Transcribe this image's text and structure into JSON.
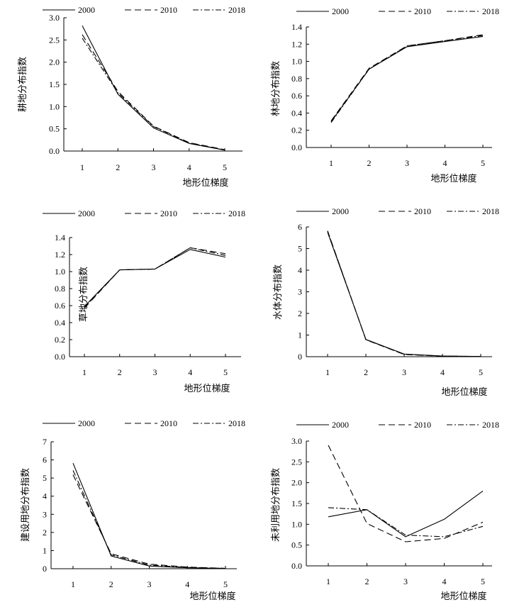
{
  "legend": [
    "2000",
    "2010",
    "2018"
  ],
  "chart_data": [
    {
      "type": "line",
      "categories": [
        "1",
        "2",
        "3",
        "4",
        "5"
      ],
      "ylabel": "耕地分布指数",
      "xlabel": "地形位梯度",
      "ylim": [
        0,
        3.0
      ],
      "yticks": [
        "0.0",
        "0.5",
        "1.0",
        "1.5",
        "2.0",
        "2.5",
        "3.0"
      ],
      "series": [
        {
          "name": "2000",
          "values": [
            2.82,
            1.28,
            0.52,
            0.17,
            0.02
          ]
        },
        {
          "name": "2010",
          "values": [
            2.62,
            1.34,
            0.56,
            0.19,
            0.03
          ]
        },
        {
          "name": "2018",
          "values": [
            2.54,
            1.31,
            0.55,
            0.18,
            0.02
          ]
        }
      ]
    },
    {
      "type": "line",
      "categories": [
        "1",
        "2",
        "3",
        "4",
        "5"
      ],
      "ylabel": "林地分布指数",
      "xlabel": "地形位梯度",
      "ylim": [
        0,
        1.4
      ],
      "yticks": [
        "0.0",
        "0.2",
        "0.4",
        "0.6",
        "0.8",
        "1.0",
        "1.2",
        "1.4"
      ],
      "series": [
        {
          "name": "2000",
          "values": [
            0.3,
            0.91,
            1.17,
            1.23,
            1.29
          ]
        },
        {
          "name": "2010",
          "values": [
            0.31,
            0.92,
            1.18,
            1.24,
            1.31
          ]
        },
        {
          "name": "2018",
          "values": [
            0.29,
            0.91,
            1.18,
            1.24,
            1.3
          ]
        }
      ]
    },
    {
      "type": "line",
      "categories": [
        "1",
        "2",
        "3",
        "4",
        "5"
      ],
      "ylabel": "草地分布指数",
      "xlabel": "地形位梯度",
      "ylim": [
        0,
        1.4
      ],
      "yticks": [
        "0.0",
        "0.2",
        "0.4",
        "0.6",
        "0.8",
        "1.0",
        "1.2",
        "1.4"
      ],
      "series": [
        {
          "name": "2000",
          "values": [
            0.59,
            1.02,
            1.03,
            1.26,
            1.17
          ]
        },
        {
          "name": "2010",
          "values": [
            0.57,
            1.02,
            1.03,
            1.28,
            1.21
          ]
        },
        {
          "name": "2018",
          "values": [
            0.58,
            1.02,
            1.03,
            1.28,
            1.19
          ]
        }
      ]
    },
    {
      "type": "line",
      "categories": [
        "1",
        "2",
        "3",
        "4",
        "5"
      ],
      "ylabel": "水体分布指数",
      "xlabel": "地形位梯度",
      "ylim": [
        0,
        6
      ],
      "yticks": [
        "0",
        "1",
        "2",
        "3",
        "4",
        "5",
        "6"
      ],
      "series": [
        {
          "name": "2000",
          "values": [
            5.75,
            0.8,
            0.12,
            0.03,
            0.01
          ]
        },
        {
          "name": "2010",
          "values": [
            5.82,
            0.78,
            0.1,
            0.02,
            0.01
          ]
        },
        {
          "name": "2018",
          "values": [
            5.8,
            0.79,
            0.11,
            0.03,
            0.01
          ]
        }
      ]
    },
    {
      "type": "line",
      "categories": [
        "1",
        "2",
        "3",
        "4",
        "5"
      ],
      "ylabel": "建设用地分布指数",
      "xlabel": "地形位梯度",
      "ylim": [
        0,
        7
      ],
      "yticks": [
        "0",
        "1",
        "2",
        "3",
        "4",
        "5",
        "6",
        "7"
      ],
      "series": [
        {
          "name": "2000",
          "values": [
            5.82,
            0.7,
            0.15,
            0.05,
            0.02
          ]
        },
        {
          "name": "2010",
          "values": [
            5.18,
            0.82,
            0.25,
            0.09,
            0.02
          ]
        },
        {
          "name": "2018",
          "values": [
            5.42,
            0.76,
            0.2,
            0.07,
            0.02
          ]
        }
      ]
    },
    {
      "type": "line",
      "categories": [
        "1",
        "2",
        "3",
        "4",
        "5"
      ],
      "ylabel": "未利用地分布指数",
      "xlabel": "地形位梯度",
      "ylim": [
        0,
        3.0
      ],
      "yticks": [
        "0.0",
        "0.5",
        "1.0",
        "1.5",
        "2.0",
        "2.5",
        "3.0"
      ],
      "series": [
        {
          "name": "2000",
          "values": [
            1.18,
            1.35,
            0.7,
            1.12,
            1.8
          ]
        },
        {
          "name": "2010",
          "values": [
            2.9,
            1.02,
            0.58,
            0.66,
            1.05
          ]
        },
        {
          "name": "2018",
          "values": [
            1.4,
            1.35,
            0.74,
            0.7,
            0.95
          ]
        }
      ]
    }
  ]
}
